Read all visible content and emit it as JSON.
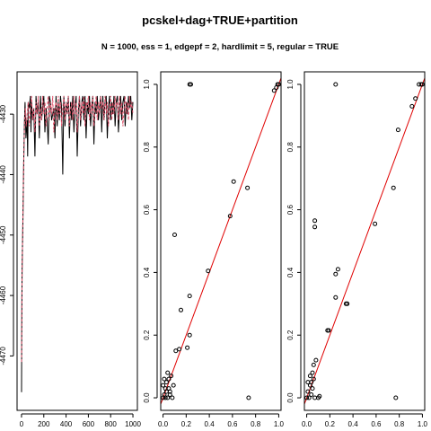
{
  "figure": {
    "title": "pcskel+dag+TRUE+partition",
    "subtitle": "N = 1000, ess = 1, edgepf = 2, hardlimit = 5, regular = TRUE"
  },
  "colors": {
    "trace1": "#000000",
    "trace2": "#df536b",
    "diagonal": "#ff0000",
    "points": "#000000"
  },
  "chart_data": [
    {
      "type": "line",
      "title": "",
      "xlabel": "",
      "ylabel": "",
      "xlim": [
        -40,
        1040
      ],
      "ylim": [
        -4479,
        -4423
      ],
      "x_ticks": [
        0,
        200,
        400,
        600,
        800,
        1000
      ],
      "x_tick_labels": [
        "0",
        "200",
        "400",
        "600",
        "800",
        "1000"
      ],
      "y_ticks": [
        -4470,
        -4460,
        -4450,
        -4440,
        -4430
      ],
      "y_tick_labels": [
        "-4470",
        "-4460",
        "-4450",
        "-4440",
        "-4430"
      ],
      "series": [
        {
          "style": "solid",
          "color": "#000000",
          "x": [
            0,
            2,
            5,
            8,
            12,
            18,
            25,
            32,
            40,
            50,
            55,
            60,
            70,
            80,
            85,
            90,
            100,
            110,
            120,
            130,
            140,
            150,
            160,
            170,
            180,
            190,
            200,
            210,
            220,
            230,
            240,
            250,
            260,
            270,
            280,
            290,
            300,
            310,
            320,
            330,
            340,
            350,
            360,
            370,
            380,
            390,
            400,
            410,
            420,
            430,
            440,
            450,
            460,
            470,
            480,
            490,
            500,
            510,
            520,
            530,
            540,
            550,
            560,
            570,
            580,
            590,
            600,
            610,
            620,
            630,
            640,
            650,
            660,
            670,
            680,
            690,
            700,
            710,
            720,
            730,
            740,
            750,
            760,
            770,
            780,
            790,
            800,
            810,
            820,
            830,
            840,
            850,
            860,
            870,
            880,
            890,
            900,
            910,
            920,
            930,
            940,
            950,
            960,
            970,
            980,
            990,
            1000
          ],
          "y": [
            -4476,
            -4466,
            -4456,
            -4452,
            -4448,
            -4440,
            -4432,
            -4428,
            -4434,
            -4431,
            -4437,
            -4428,
            -4429,
            -4427,
            -4433,
            -4428,
            -4431,
            -4429,
            -4437,
            -4427,
            -4430,
            -4428,
            -4434,
            -4427,
            -4431,
            -4429,
            -4427,
            -4433,
            -4429,
            -4431,
            -4435,
            -4427,
            -4428,
            -4431,
            -4430,
            -4429,
            -4434,
            -4427,
            -4432,
            -4428,
            -4431,
            -4427,
            -4429,
            -4440,
            -4427,
            -4432,
            -4428,
            -4430,
            -4427,
            -4434,
            -4428,
            -4431,
            -4427,
            -4433,
            -4429,
            -4427,
            -4437,
            -4430,
            -4427,
            -4432,
            -4428,
            -4427,
            -4431,
            -4427,
            -4434,
            -4428,
            -4430,
            -4427,
            -4432,
            -4429,
            -4427,
            -4435,
            -4428,
            -4430,
            -4427,
            -4431,
            -4429,
            -4427,
            -4433,
            -4427,
            -4431,
            -4428,
            -4427,
            -4434,
            -4429,
            -4427,
            -4431,
            -4428,
            -4430,
            -4427,
            -4432,
            -4428,
            -4427,
            -4433,
            -4429,
            -4427,
            -4431,
            -4428,
            -4427,
            -4432,
            -4428,
            -4430,
            -4427,
            -4429,
            -4427,
            -4431,
            -4428
          ]
        },
        {
          "style": "dashed",
          "color": "#df536b",
          "x": [
            0,
            3,
            6,
            10,
            15,
            20,
            28,
            35,
            42,
            50,
            60,
            70,
            80,
            90,
            100,
            110,
            120,
            130,
            140,
            150,
            160,
            170,
            180,
            190,
            200,
            210,
            220,
            230,
            240,
            250,
            260,
            270,
            280,
            290,
            300,
            310,
            320,
            330,
            340,
            350,
            360,
            370,
            380,
            390,
            400,
            410,
            420,
            430,
            440,
            450,
            460,
            470,
            480,
            490,
            500,
            510,
            520,
            530,
            540,
            550,
            560,
            570,
            580,
            590,
            600,
            610,
            620,
            630,
            640,
            650,
            660,
            670,
            680,
            690,
            700,
            710,
            720,
            730,
            740,
            750,
            760,
            770,
            780,
            790,
            800,
            810,
            820,
            830,
            840,
            850,
            860,
            870,
            880,
            890,
            900,
            910,
            920,
            930,
            940,
            950,
            960,
            970,
            980,
            990,
            1000
          ],
          "y": [
            -4471,
            -4462,
            -4455,
            -4450,
            -4444,
            -4438,
            -4431,
            -4429,
            -4432,
            -4430,
            -4428,
            -4432,
            -4429,
            -4427,
            -4431,
            -4429,
            -4433,
            -4428,
            -4430,
            -4427,
            -4432,
            -4429,
            -4431,
            -4427,
            -4430,
            -4428,
            -4432,
            -4429,
            -4427,
            -4431,
            -4428,
            -4430,
            -4427,
            -4433,
            -4429,
            -4428,
            -4431,
            -4427,
            -4430,
            -4428,
            -4432,
            -4429,
            -4427,
            -4431,
            -4428,
            -4430,
            -4427,
            -4432,
            -4429,
            -4428,
            -4431,
            -4427,
            -4430,
            -4428,
            -4433,
            -4429,
            -4427,
            -4431,
            -4428,
            -4430,
            -4427,
            -4432,
            -4428,
            -4429,
            -4427,
            -4431,
            -4428,
            -4430,
            -4427,
            -4432,
            -4429,
            -4427,
            -4431,
            -4428,
            -4430,
            -4427,
            -4429,
            -4428,
            -4431,
            -4427,
            -4430,
            -4428,
            -4432,
            -4429,
            -4427,
            -4431,
            -4428,
            -4430,
            -4427,
            -4429,
            -4428,
            -4431,
            -4427,
            -4430,
            -4428,
            -4432,
            -4429,
            -4427,
            -4430,
            -4428,
            -4431,
            -4427,
            -4429,
            -4428,
            -4430
          ]
        }
      ]
    },
    {
      "type": "scatter",
      "title": "",
      "xlabel": "",
      "ylabel": "",
      "xlim": [
        -0.02,
        1.02
      ],
      "ylim": [
        -0.04,
        1.04
      ],
      "x_ticks": [
        0.0,
        0.2,
        0.4,
        0.6,
        0.8,
        1.0
      ],
      "x_tick_labels": [
        "0.0",
        "0.2",
        "0.4",
        "0.6",
        "0.8",
        "1.0"
      ],
      "y_ticks": [
        0.0,
        0.2,
        0.4,
        0.6,
        0.8,
        1.0
      ],
      "y_tick_labels": [
        "0.0",
        "0.2",
        "0.4",
        "0.6",
        "0.8",
        "1.0"
      ],
      "reference_line": "y = x",
      "points": [
        [
          0.0,
          0.0
        ],
        [
          0.01,
          0.01
        ],
        [
          0.02,
          0.0
        ],
        [
          0.03,
          0.02
        ],
        [
          0.04,
          0.0
        ],
        [
          0.05,
          0.03
        ],
        [
          0.06,
          0.01
        ],
        [
          0.02,
          0.03
        ],
        [
          0.03,
          0.05
        ],
        [
          0.05,
          0.06
        ],
        [
          0.07,
          0.07
        ],
        [
          0.04,
          0.08
        ],
        [
          0.06,
          0.02
        ],
        [
          0.08,
          0.0
        ],
        [
          0.0,
          0.04
        ],
        [
          0.01,
          0.06
        ],
        [
          0.09,
          0.04
        ],
        [
          0.11,
          0.15
        ],
        [
          0.14,
          0.155
        ],
        [
          0.155,
          0.28
        ],
        [
          0.21,
          0.16
        ],
        [
          0.23,
          0.2
        ],
        [
          0.23,
          0.325
        ],
        [
          0.24,
          1.0
        ],
        [
          0.23,
          1.0
        ],
        [
          0.1,
          0.52
        ],
        [
          0.39,
          0.405
        ],
        [
          0.58,
          0.58
        ],
        [
          0.61,
          0.69
        ],
        [
          0.73,
          0.67
        ],
        [
          0.74,
          0.0
        ],
        [
          0.96,
          0.98
        ],
        [
          0.98,
          0.99
        ],
        [
          0.99,
          1.0
        ],
        [
          1.0,
          1.0
        ]
      ]
    },
    {
      "type": "scatter",
      "title": "",
      "xlabel": "",
      "ylabel": "",
      "xlim": [
        -0.02,
        1.02
      ],
      "ylim": [
        -0.04,
        1.04
      ],
      "x_ticks": [
        0.0,
        0.2,
        0.4,
        0.6,
        0.8,
        1.0
      ],
      "x_tick_labels": [
        "0.0",
        "0.2",
        "0.4",
        "0.6",
        "0.8",
        "1.0"
      ],
      "y_ticks": [
        0.0,
        0.2,
        0.4,
        0.6,
        0.8,
        1.0
      ],
      "y_tick_labels": [
        "0.0",
        "0.2",
        "0.4",
        "0.6",
        "0.8",
        "1.0"
      ],
      "reference_line": "y = x",
      "points": [
        [
          0.0,
          0.0
        ],
        [
          0.01,
          0.02
        ],
        [
          0.02,
          0.0
        ],
        [
          0.03,
          0.04
        ],
        [
          0.04,
          0.01
        ],
        [
          0.05,
          0.03
        ],
        [
          0.01,
          0.05
        ],
        [
          0.06,
          0.06
        ],
        [
          0.03,
          0.07
        ],
        [
          0.05,
          0.08
        ],
        [
          0.07,
          0.0
        ],
        [
          0.06,
          0.105
        ],
        [
          0.08,
          0.12
        ],
        [
          0.1,
          0.0
        ],
        [
          0.11,
          0.005
        ],
        [
          0.04,
          0.05
        ],
        [
          0.18,
          0.215
        ],
        [
          0.19,
          0.215
        ],
        [
          0.25,
          0.32
        ],
        [
          0.25,
          0.395
        ],
        [
          0.27,
          0.41
        ],
        [
          0.34,
          0.3
        ],
        [
          0.35,
          0.3
        ],
        [
          0.25,
          1.0
        ],
        [
          0.07,
          0.545
        ],
        [
          0.07,
          0.565
        ],
        [
          0.59,
          0.555
        ],
        [
          0.75,
          0.67
        ],
        [
          0.77,
          0.0
        ],
        [
          0.79,
          0.855
        ],
        [
          0.91,
          0.93
        ],
        [
          0.94,
          0.955
        ],
        [
          0.97,
          1.0
        ],
        [
          0.99,
          1.0
        ],
        [
          1.0,
          1.0
        ]
      ]
    }
  ]
}
